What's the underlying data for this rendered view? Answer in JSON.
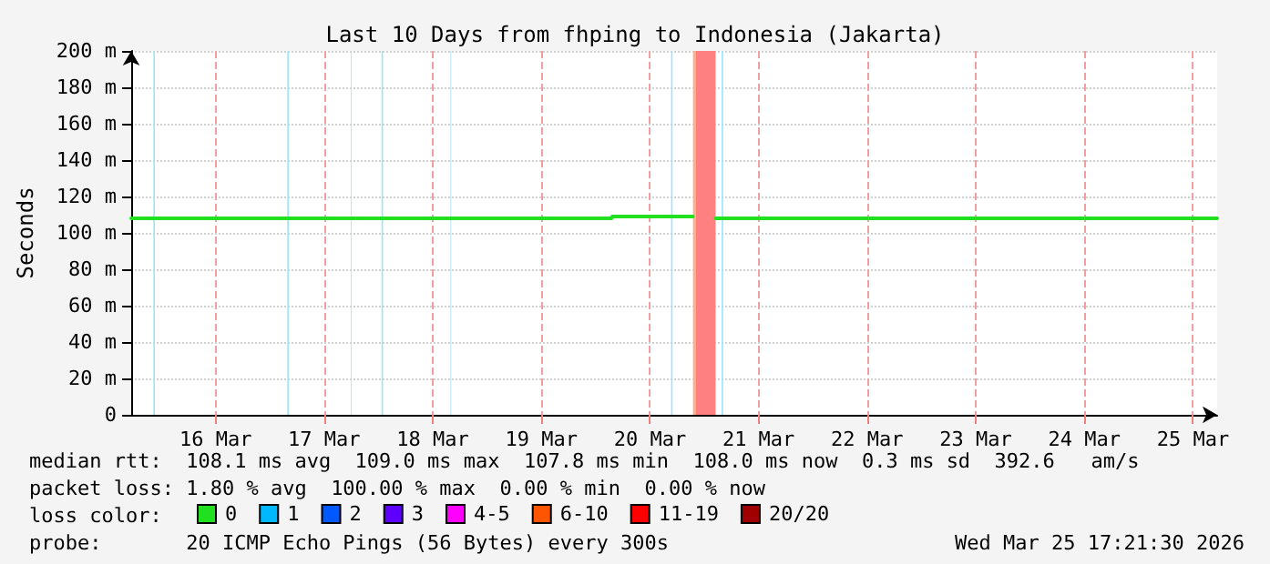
{
  "chart_data": {
    "type": "line",
    "title": "Last 10 Days from fhping to Indonesia (Jakarta)",
    "ylabel": "Seconds",
    "legend_title": "loss color:",
    "legend": "bottom",
    "x": [
      "2026-03-15T17:21",
      "2026-03-17T00:00",
      "2026-03-18T12:00",
      "2026-03-20T03:30",
      "2026-03-20T03:40",
      "2026-03-20T21:30",
      "2026-03-20T21:40",
      "2026-03-21T02:30",
      "2026-03-22T12:00",
      "2026-03-24T00:00",
      "2026-03-25T09:55",
      "2026-03-25T10:00",
      "2026-03-25T10:05",
      "2026-03-25T17:21"
    ],
    "series": [
      {
        "name": "0",
        "color": "#20e020",
        "values": [
          108,
          108,
          108,
          108,
          109,
          109,
          null,
          108,
          108,
          108,
          108,
          null,
          108,
          108
        ]
      },
      {
        "name": "1",
        "color": "#00b8ff",
        "values": [
          null,
          null,
          null,
          null,
          null,
          null,
          null,
          null,
          null,
          null,
          null,
          null,
          null,
          null
        ]
      },
      {
        "name": "2",
        "color": "#0059ff",
        "values": [
          null,
          null,
          null,
          null,
          null,
          null,
          null,
          null,
          null,
          null,
          null,
          null,
          null,
          null
        ]
      },
      {
        "name": "3",
        "color": "#5e00ff",
        "values": [
          null,
          null,
          null,
          null,
          null,
          null,
          null,
          null,
          null,
          null,
          null,
          null,
          null,
          null
        ]
      },
      {
        "name": "4-5",
        "color": "#ff00ff",
        "values": [
          null,
          null,
          null,
          null,
          null,
          null,
          null,
          null,
          null,
          null,
          null,
          null,
          null,
          null
        ]
      },
      {
        "name": "6-10",
        "color": "#ff5500",
        "values": [
          null,
          null,
          null,
          null,
          null,
          null,
          null,
          null,
          null,
          null,
          null,
          null,
          null,
          null
        ]
      },
      {
        "name": "11-19",
        "color": "#ff0000",
        "values": [
          null,
          null,
          null,
          null,
          null,
          null,
          null,
          null,
          null,
          null,
          null,
          null,
          null,
          null
        ]
      },
      {
        "name": "20/20",
        "color": "#a10000",
        "values": [
          null,
          null,
          null,
          null,
          null,
          null,
          null,
          null,
          null,
          null,
          null,
          null,
          null,
          null
        ]
      }
    ],
    "xlim": [
      "2026-03-15T17:21",
      "2026-03-25T17:21"
    ],
    "xticks": [
      {
        "value": "2026-03-16T12:00",
        "label": "16 Mar"
      },
      {
        "value": "2026-03-17T12:00",
        "label": "17 Mar"
      },
      {
        "value": "2026-03-18T12:00",
        "label": "18 Mar"
      },
      {
        "value": "2026-03-19T12:00",
        "label": "19 Mar"
      },
      {
        "value": "2026-03-20T12:00",
        "label": "20 Mar"
      },
      {
        "value": "2026-03-21T12:00",
        "label": "21 Mar"
      },
      {
        "value": "2026-03-22T12:00",
        "label": "22 Mar"
      },
      {
        "value": "2026-03-23T12:00",
        "label": "23 Mar"
      },
      {
        "value": "2026-03-24T12:00",
        "label": "24 Mar"
      },
      {
        "value": "2026-03-25T12:00",
        "label": "25 Mar"
      }
    ],
    "ylim": [
      0,
      200
    ],
    "yticks": [
      0,
      {
        "value": 20,
        "label": "20 m"
      },
      {
        "value": 40,
        "label": "40 m"
      },
      {
        "value": 60,
        "label": "60 m"
      },
      {
        "value": 80,
        "label": "80 m"
      },
      {
        "value": 100,
        "label": "100 m"
      },
      {
        "value": 120,
        "label": "120 m"
      },
      {
        "value": 140,
        "label": "140 m"
      },
      {
        "value": 160,
        "label": "160 m"
      },
      {
        "value": 180,
        "label": "180 m"
      },
      {
        "value": 200,
        "label": "200 m"
      }
    ],
    "grid": true,
    "bands": [
      {
        "axis": "x",
        "from": "2026-03-15T22:15",
        "to": "2026-03-15T22:35",
        "color": "#a0e4fa"
      },
      {
        "axis": "x",
        "from": "2026-03-17T03:50",
        "to": "2026-03-17T04:10",
        "color": "#a0e4fa"
      },
      {
        "axis": "x",
        "from": "2026-03-17T17:55",
        "to": "2026-03-17T18:05",
        "color": "#a0e4fa"
      },
      {
        "axis": "x",
        "from": "2026-03-18T00:40",
        "to": "2026-03-18T01:00",
        "color": "#a0e4fa"
      },
      {
        "axis": "x",
        "from": "2026-03-18T15:55",
        "to": "2026-03-18T16:05",
        "color": "#a0e4fa"
      },
      {
        "axis": "x",
        "from": "2026-03-20T16:40",
        "to": "2026-03-20T17:00",
        "color": "#a0e4fa"
      },
      {
        "axis": "x",
        "from": "2026-03-20T21:30",
        "to": "2026-03-20T22:10",
        "color": "#ffb090"
      },
      {
        "axis": "x",
        "from": "2026-03-20T22:10",
        "to": "2026-03-21T02:30",
        "color": "#ff8080"
      },
      {
        "axis": "x",
        "from": "2026-03-21T03:50",
        "to": "2026-03-21T04:10",
        "color": "#a0e4fa"
      }
    ],
    "annotations": [
      "median rtt:  108.1 ms avg  109.0 ms max  107.8 ms min  108.0 ms now  0.3 ms sd  392.6   am/s",
      "packet loss: 1.80 % avg  100.00 % max  0.00 % min  0.00 % now",
      "probe:       20 ICMP Echo Pings (56 Bytes) every 300s",
      "Wed Mar 25 17:21:30 2026"
    ]
  }
}
